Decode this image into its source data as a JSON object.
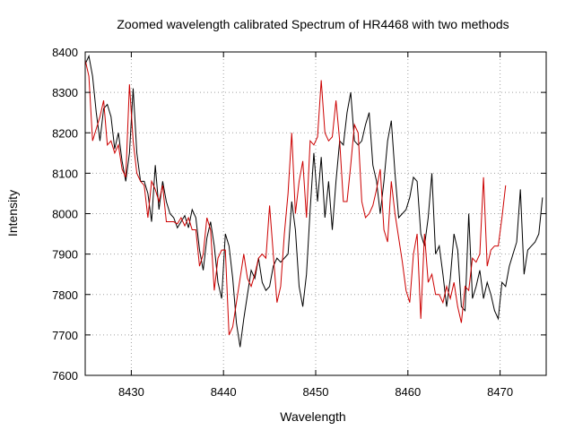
{
  "chart_data": {
    "type": "line",
    "title": "Zoomed wavelength calibrated Spectrum of HR4468 with two methods",
    "xlabel": "Wavelength",
    "ylabel": "Intensity",
    "xlim": [
      8425,
      8475
    ],
    "ylim": [
      7600,
      8400
    ],
    "xticks": [
      8430,
      8440,
      8450,
      8460,
      8470
    ],
    "yticks": [
      7600,
      7700,
      7800,
      7900,
      8000,
      8100,
      8200,
      8300,
      8400
    ],
    "grid": true,
    "legend": "none",
    "series": [
      {
        "color": "#000000",
        "points": [
          [
            8425.0,
            8370
          ],
          [
            8425.4,
            8390
          ],
          [
            8425.8,
            8340
          ],
          [
            8426.2,
            8250
          ],
          [
            8426.6,
            8180
          ],
          [
            8427.0,
            8260
          ],
          [
            8427.4,
            8270
          ],
          [
            8427.8,
            8240
          ],
          [
            8428.2,
            8160
          ],
          [
            8428.6,
            8200
          ],
          [
            8429.0,
            8130
          ],
          [
            8429.4,
            8080
          ],
          [
            8429.8,
            8150
          ],
          [
            8430.2,
            8310
          ],
          [
            8430.6,
            8150
          ],
          [
            8431.0,
            8080
          ],
          [
            8431.4,
            8080
          ],
          [
            8431.8,
            8050
          ],
          [
            8432.2,
            7980
          ],
          [
            8432.6,
            8120
          ],
          [
            8433.0,
            8010
          ],
          [
            8433.4,
            8080
          ],
          [
            8433.8,
            8030
          ],
          [
            8434.2,
            8000
          ],
          [
            8434.6,
            7990
          ],
          [
            8435.0,
            7965
          ],
          [
            8435.4,
            7980
          ],
          [
            8435.8,
            7995
          ],
          [
            8436.2,
            7965
          ],
          [
            8436.6,
            8010
          ],
          [
            8437.0,
            7990
          ],
          [
            8437.4,
            7910
          ],
          [
            8437.8,
            7860
          ],
          [
            8438.2,
            7940
          ],
          [
            8438.6,
            7980
          ],
          [
            8439.0,
            7920
          ],
          [
            8439.4,
            7830
          ],
          [
            8439.8,
            7790
          ],
          [
            8440.2,
            7950
          ],
          [
            8440.6,
            7920
          ],
          [
            8441.0,
            7840
          ],
          [
            8441.4,
            7730
          ],
          [
            8441.8,
            7670
          ],
          [
            8442.2,
            7740
          ],
          [
            8442.6,
            7800
          ],
          [
            8443.0,
            7860
          ],
          [
            8443.4,
            7840
          ],
          [
            8443.8,
            7890
          ],
          [
            8444.2,
            7830
          ],
          [
            8444.6,
            7810
          ],
          [
            8445.0,
            7820
          ],
          [
            8445.4,
            7870
          ],
          [
            8445.8,
            7890
          ],
          [
            8446.2,
            7880
          ],
          [
            8446.6,
            7890
          ],
          [
            8447.0,
            7900
          ],
          [
            8447.4,
            8030
          ],
          [
            8447.8,
            7960
          ],
          [
            8448.2,
            7820
          ],
          [
            8448.6,
            7770
          ],
          [
            8449.0,
            7850
          ],
          [
            8449.4,
            8010
          ],
          [
            8449.8,
            8150
          ],
          [
            8450.2,
            8030
          ],
          [
            8450.6,
            8140
          ],
          [
            8451.0,
            7990
          ],
          [
            8451.4,
            8080
          ],
          [
            8451.8,
            7960
          ],
          [
            8452.2,
            8080
          ],
          [
            8452.6,
            8180
          ],
          [
            8453.0,
            8170
          ],
          [
            8453.4,
            8250
          ],
          [
            8453.8,
            8300
          ],
          [
            8454.2,
            8180
          ],
          [
            8454.6,
            8170
          ],
          [
            8455.0,
            8180
          ],
          [
            8455.4,
            8220
          ],
          [
            8455.8,
            8250
          ],
          [
            8456.2,
            8120
          ],
          [
            8456.6,
            8080
          ],
          [
            8457.0,
            8000
          ],
          [
            8457.4,
            8080
          ],
          [
            8457.8,
            8180
          ],
          [
            8458.2,
            8230
          ],
          [
            8458.6,
            8100
          ],
          [
            8459.0,
            7990
          ],
          [
            8459.4,
            8000
          ],
          [
            8459.8,
            8010
          ],
          [
            8460.2,
            8040
          ],
          [
            8460.6,
            8090
          ],
          [
            8461.0,
            8080
          ],
          [
            8461.4,
            7950
          ],
          [
            8461.8,
            7920
          ],
          [
            8462.2,
            7990
          ],
          [
            8462.6,
            8100
          ],
          [
            8463.0,
            7900
          ],
          [
            8463.4,
            7920
          ],
          [
            8463.8,
            7850
          ],
          [
            8464.2,
            7770
          ],
          [
            8464.6,
            7840
          ],
          [
            8465.0,
            7950
          ],
          [
            8465.4,
            7910
          ],
          [
            8465.8,
            7770
          ],
          [
            8466.2,
            7760
          ],
          [
            8466.6,
            8000
          ],
          [
            8467.0,
            7790
          ],
          [
            8467.4,
            7820
          ],
          [
            8467.8,
            7860
          ],
          [
            8468.2,
            7790
          ],
          [
            8468.6,
            7830
          ],
          [
            8469.0,
            7800
          ],
          [
            8469.4,
            7760
          ],
          [
            8469.8,
            7740
          ],
          [
            8470.2,
            7830
          ],
          [
            8470.6,
            7820
          ],
          [
            8471.0,
            7870
          ],
          [
            8471.4,
            7900
          ],
          [
            8471.8,
            7930
          ],
          [
            8472.2,
            8060
          ],
          [
            8472.6,
            7850
          ],
          [
            8473.0,
            7910
          ],
          [
            8473.4,
            7920
          ],
          [
            8473.8,
            7930
          ],
          [
            8474.2,
            7950
          ],
          [
            8474.6,
            8040
          ]
        ]
      },
      {
        "color": "#cc0000",
        "points": [
          [
            8425.0,
            8380
          ],
          [
            8425.4,
            8340
          ],
          [
            8425.8,
            8180
          ],
          [
            8426.2,
            8210
          ],
          [
            8426.6,
            8240
          ],
          [
            8427.0,
            8280
          ],
          [
            8427.4,
            8170
          ],
          [
            8427.8,
            8180
          ],
          [
            8428.2,
            8150
          ],
          [
            8428.6,
            8170
          ],
          [
            8429.0,
            8110
          ],
          [
            8429.4,
            8090
          ],
          [
            8429.8,
            8320
          ],
          [
            8430.2,
            8180
          ],
          [
            8430.6,
            8100
          ],
          [
            8431.0,
            8080
          ],
          [
            8431.4,
            8070
          ],
          [
            8431.8,
            7990
          ],
          [
            8432.2,
            8080
          ],
          [
            8432.6,
            8060
          ],
          [
            8433.0,
            8030
          ],
          [
            8433.4,
            8070
          ],
          [
            8433.8,
            7980
          ],
          [
            8434.2,
            7980
          ],
          [
            8434.6,
            7980
          ],
          [
            8435.0,
            7975
          ],
          [
            8435.4,
            7990
          ],
          [
            8435.8,
            7970
          ],
          [
            8436.2,
            7990
          ],
          [
            8436.6,
            7960
          ],
          [
            8437.0,
            7960
          ],
          [
            8437.4,
            7870
          ],
          [
            8437.8,
            7900
          ],
          [
            8438.2,
            7990
          ],
          [
            8438.6,
            7960
          ],
          [
            8439.0,
            7810
          ],
          [
            8439.4,
            7890
          ],
          [
            8439.8,
            7910
          ],
          [
            8440.2,
            7910
          ],
          [
            8440.6,
            7700
          ],
          [
            8441.0,
            7720
          ],
          [
            8441.4,
            7780
          ],
          [
            8441.8,
            7840
          ],
          [
            8442.2,
            7900
          ],
          [
            8442.6,
            7840
          ],
          [
            8443.0,
            7820
          ],
          [
            8443.4,
            7850
          ],
          [
            8443.8,
            7890
          ],
          [
            8444.2,
            7900
          ],
          [
            8444.6,
            7890
          ],
          [
            8445.0,
            8020
          ],
          [
            8445.4,
            7900
          ],
          [
            8445.8,
            7780
          ],
          [
            8446.2,
            7820
          ],
          [
            8446.6,
            7950
          ],
          [
            8447.0,
            8050
          ],
          [
            8447.4,
            8200
          ],
          [
            8447.8,
            8000
          ],
          [
            8448.2,
            8080
          ],
          [
            8448.6,
            8130
          ],
          [
            8449.0,
            7990
          ],
          [
            8449.4,
            8180
          ],
          [
            8449.8,
            8170
          ],
          [
            8450.2,
            8190
          ],
          [
            8450.6,
            8330
          ],
          [
            8451.0,
            8200
          ],
          [
            8451.4,
            8180
          ],
          [
            8451.8,
            8190
          ],
          [
            8452.2,
            8280
          ],
          [
            8452.6,
            8180
          ],
          [
            8453.0,
            8030
          ],
          [
            8453.4,
            8030
          ],
          [
            8453.8,
            8120
          ],
          [
            8454.2,
            8220
          ],
          [
            8454.6,
            8200
          ],
          [
            8455.0,
            8030
          ],
          [
            8455.4,
            7990
          ],
          [
            8455.8,
            8000
          ],
          [
            8456.2,
            8020
          ],
          [
            8456.6,
            8060
          ],
          [
            8457.0,
            8110
          ],
          [
            8457.4,
            7960
          ],
          [
            8457.8,
            7930
          ],
          [
            8458.2,
            8080
          ],
          [
            8458.6,
            8000
          ],
          [
            8459.0,
            7940
          ],
          [
            8459.4,
            7880
          ],
          [
            8459.8,
            7810
          ],
          [
            8460.2,
            7780
          ],
          [
            8460.6,
            7900
          ],
          [
            8461.0,
            7950
          ],
          [
            8461.4,
            7740
          ],
          [
            8461.8,
            7950
          ],
          [
            8462.2,
            7830
          ],
          [
            8462.6,
            7850
          ],
          [
            8463.0,
            7800
          ],
          [
            8463.4,
            7800
          ],
          [
            8463.8,
            7780
          ],
          [
            8464.2,
            7820
          ],
          [
            8464.6,
            7790
          ],
          [
            8465.0,
            7830
          ],
          [
            8465.4,
            7770
          ],
          [
            8465.8,
            7730
          ],
          [
            8466.2,
            7820
          ],
          [
            8466.6,
            7810
          ],
          [
            8467.0,
            7890
          ],
          [
            8467.4,
            7880
          ],
          [
            8467.8,
            7900
          ],
          [
            8468.2,
            8090
          ],
          [
            8468.6,
            7870
          ],
          [
            8469.0,
            7910
          ],
          [
            8469.4,
            7920
          ],
          [
            8469.8,
            7920
          ],
          [
            8470.2,
            7990
          ],
          [
            8470.6,
            8070
          ]
        ]
      }
    ]
  }
}
